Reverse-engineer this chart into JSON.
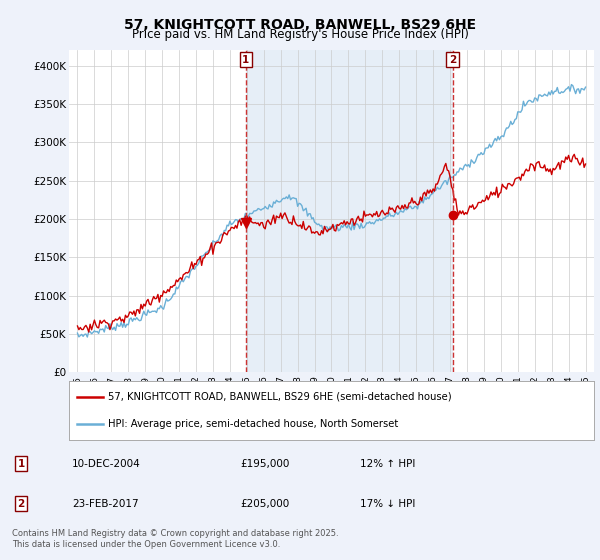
{
  "title_line1": "57, KNIGHTCOTT ROAD, BANWELL, BS29 6HE",
  "title_line2": "Price paid vs. HM Land Registry's House Price Index (HPI)",
  "legend_line1": "57, KNIGHTCOTT ROAD, BANWELL, BS29 6HE (semi-detached house)",
  "legend_line2": "HPI: Average price, semi-detached house, North Somerset",
  "annotation_text": "Contains HM Land Registry data © Crown copyright and database right 2025.\nThis data is licensed under the Open Government Licence v3.0.",
  "sale1_label": "1",
  "sale1_date": "10-DEC-2004",
  "sale1_price": "£195,000",
  "sale1_hpi": "12% ↑ HPI",
  "sale2_label": "2",
  "sale2_date": "23-FEB-2017",
  "sale2_price": "£205,000",
  "sale2_hpi": "17% ↓ HPI",
  "sale1_x": 2004.94,
  "sale1_y": 195000,
  "sale2_x": 2017.15,
  "sale2_y": 205000,
  "ylim_min": 0,
  "ylim_max": 420000,
  "xlim_min": 1994.5,
  "xlim_max": 2025.5,
  "background_color": "#eef2fa",
  "plot_bg_color": "#ffffff",
  "shade_color": "#dce8f5",
  "red_line_color": "#cc0000",
  "blue_line_color": "#6aafd6",
  "vline_color": "#cc3333",
  "grid_color": "#cccccc",
  "yticks": [
    0,
    50000,
    100000,
    150000,
    200000,
    250000,
    300000,
    350000,
    400000
  ],
  "ytick_labels": [
    "£0",
    "£50K",
    "£100K",
    "£150K",
    "£200K",
    "£250K",
    "£300K",
    "£350K",
    "£400K"
  ]
}
